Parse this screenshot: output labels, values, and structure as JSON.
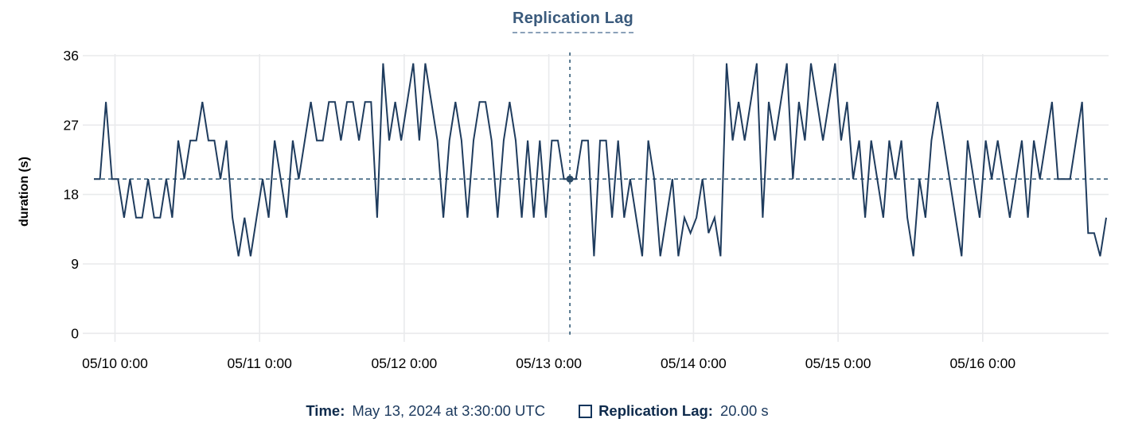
{
  "chart": {
    "title": "Replication Lag",
    "y_axis_label": "duration (s)",
    "tooltip": {
      "time_label": "Time:",
      "time_value": "May 13, 2024 at 3:30:00 UTC",
      "series_label": "Replication Lag:",
      "series_value": "20.00 s"
    }
  },
  "chart_data": {
    "type": "line",
    "title": "Replication Lag",
    "xlabel": "",
    "ylabel": "duration (s)",
    "ylim": [
      0,
      36
    ],
    "y_ticks": [
      0,
      9,
      18,
      27,
      36
    ],
    "x_tick_labels": [
      "05/10 0:00",
      "05/11 0:00",
      "05/12 0:00",
      "05/13 0:00",
      "05/14 0:00",
      "05/15 0:00",
      "05/16 0:00"
    ],
    "x_tick_hours": [
      0,
      24,
      48,
      72,
      96,
      120,
      144
    ],
    "x_start_hour": -3.5,
    "sample_interval_hours": 1,
    "grid": true,
    "legend_position": "bottom",
    "reference_line_y": 20,
    "crosshair": {
      "hour": 75.5,
      "time": "May 13, 2024 at 3:30:00 UTC",
      "value": 20.0
    },
    "series": [
      {
        "name": "Replication Lag",
        "unit": "s",
        "values": [
          20,
          20,
          30,
          20,
          20,
          15,
          20,
          15,
          15,
          20,
          15,
          15,
          20,
          15,
          25,
          20,
          25,
          25,
          30,
          25,
          25,
          20,
          25,
          15,
          10,
          15,
          10,
          15,
          20,
          15,
          25,
          20,
          15,
          25,
          20,
          25,
          30,
          25,
          25,
          30,
          30,
          25,
          30,
          30,
          25,
          30,
          30,
          15,
          35,
          25,
          30,
          25,
          30,
          35,
          25,
          35,
          30,
          25,
          15,
          25,
          30,
          25,
          15,
          25,
          30,
          30,
          25,
          15,
          25,
          30,
          25,
          15,
          25,
          15,
          25,
          15,
          25,
          25,
          20,
          20,
          20,
          25,
          25,
          10,
          25,
          25,
          15,
          25,
          15,
          20,
          15,
          10,
          25,
          20,
          10,
          15,
          20,
          10,
          15,
          13,
          15,
          20,
          13,
          15,
          10,
          35,
          25,
          30,
          25,
          30,
          35,
          15,
          30,
          25,
          30,
          35,
          20,
          30,
          25,
          35,
          30,
          25,
          30,
          35,
          25,
          30,
          20,
          25,
          15,
          25,
          20,
          15,
          25,
          20,
          25,
          15,
          10,
          20,
          15,
          25,
          30,
          25,
          20,
          15,
          10,
          25,
          20,
          15,
          25,
          20,
          25,
          20,
          15,
          20,
          25,
          15,
          25,
          20,
          25,
          30,
          20,
          20,
          20,
          25,
          30,
          13,
          13,
          10,
          15
        ]
      }
    ],
    "colors": {
      "line": "#1f3c5e",
      "dashed": "#3e647f",
      "dot": "#2b4a66",
      "grid": "#e9eaec",
      "title": "#3a5a7c",
      "tick_text": "#000000",
      "legend_label": "#0f2b4c",
      "legend_value": "#1c3a5e",
      "swatch_border": "#14355c"
    }
  }
}
